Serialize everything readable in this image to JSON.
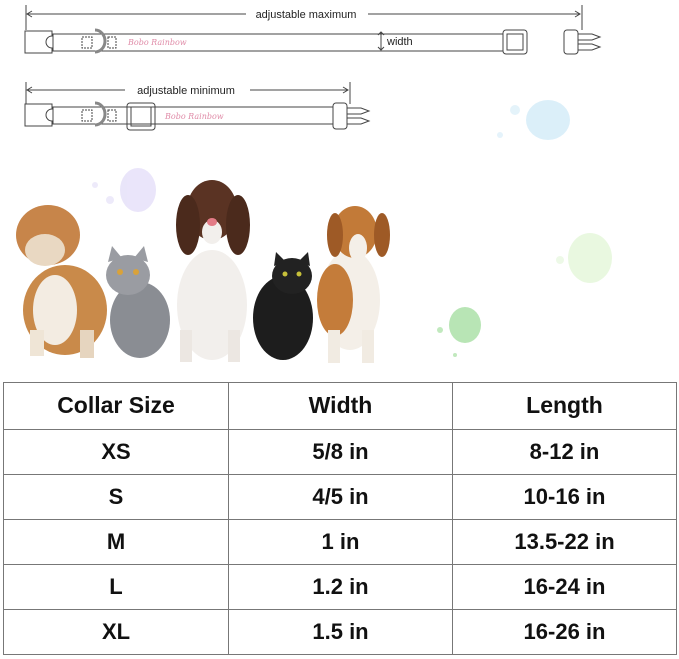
{
  "diagram": {
    "max_label": "adjustable maximum",
    "min_label": "adjustable minimum",
    "width_label": "width",
    "brand": "Bobo Rainbow"
  },
  "size_table": {
    "headers": [
      "Collar Size",
      "Width",
      "Length"
    ],
    "rows": [
      [
        "XS",
        "5/8 in",
        "8-12 in"
      ],
      [
        "S",
        "4/5 in",
        "10-16 in"
      ],
      [
        "M",
        "1 in",
        "13.5-22 in"
      ],
      [
        "L",
        "1.2 in",
        "16-24 in"
      ],
      [
        "XL",
        "1.5 in",
        "16-26 in"
      ]
    ]
  }
}
